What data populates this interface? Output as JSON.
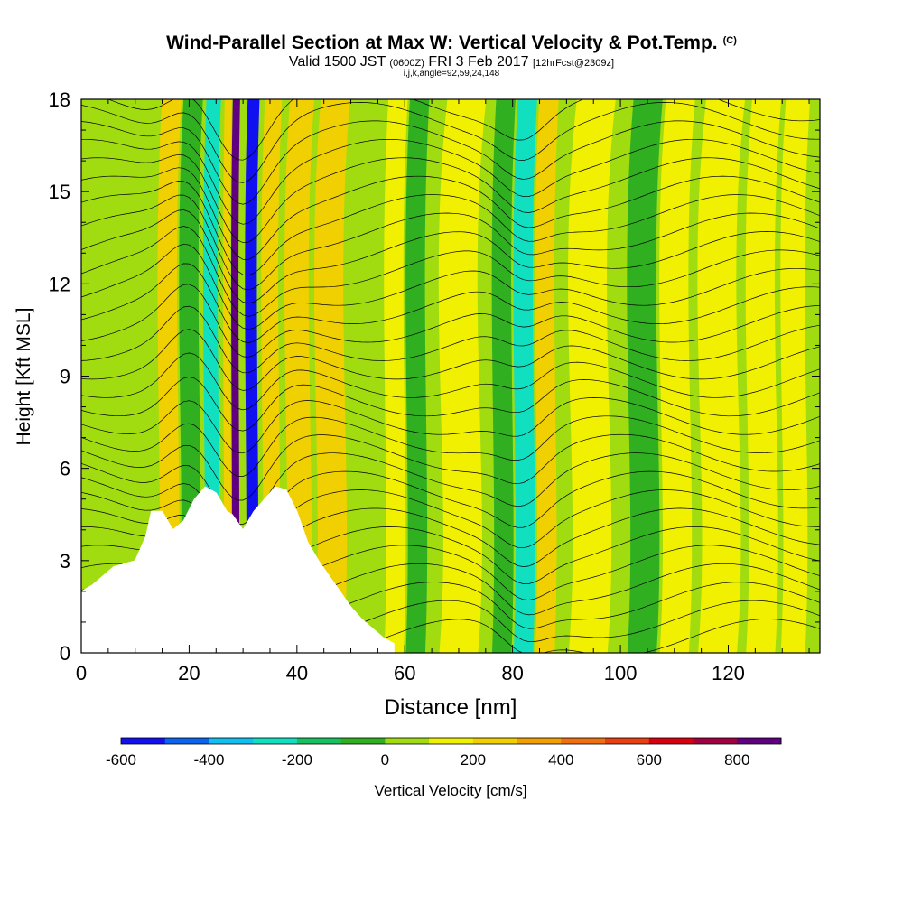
{
  "title": {
    "main": "Wind-Parallel Section at Max W: Vertical Velocity & Pot.Temp.",
    "copyright": "(C)",
    "valid_prefix": "Valid 1500 JST",
    "valid_utc": "(0600Z)",
    "valid_date": "FRI 3 Feb 2017",
    "forecast": "[12hrFcst@2309z]",
    "indices": "i,j,k,angle=92,59,24,148"
  },
  "chart_data": {
    "type": "contour",
    "xlabel": "Distance [nm]",
    "ylabel": "Height [Kft MSL]",
    "xlim": [
      0,
      137
    ],
    "ylim": [
      0,
      18
    ],
    "x_ticks": [
      0,
      20,
      40,
      60,
      80,
      100,
      120
    ],
    "y_ticks": [
      0,
      3,
      6,
      9,
      12,
      15,
      18
    ],
    "grid": false,
    "colorbar": {
      "label": "Vertical Velocity [cm/s]",
      "range": [
        -600,
        900
      ],
      "step": 100,
      "tick_values": [
        -600,
        -400,
        -200,
        0,
        200,
        400,
        600,
        800
      ],
      "tick_labels": [
        "-600",
        "-400",
        "-200",
        "0",
        "200",
        "400",
        "600",
        "800"
      ],
      "colors": [
        "#1010f0",
        "#0a64f0",
        "#10c0f0",
        "#10e0c0",
        "#18c060",
        "#30b020",
        "#a0dc10",
        "#f0f000",
        "#f0d000",
        "#f0a000",
        "#f07010",
        "#e84010",
        "#d80010",
        "#a00040",
        "#600080"
      ]
    },
    "terrain_profile": {
      "x": [
        0,
        2,
        4,
        6,
        8,
        10,
        12,
        13,
        15,
        17,
        19,
        21,
        23,
        25,
        27,
        28,
        30,
        32,
        34,
        36,
        38,
        40,
        42,
        44,
        46,
        48,
        50,
        52,
        54,
        56,
        58
      ],
      "height": [
        2.0,
        2.2,
        2.5,
        2.8,
        2.9,
        3.0,
        3.8,
        4.6,
        4.6,
        4.0,
        4.3,
        5.0,
        5.4,
        5.2,
        4.6,
        4.5,
        4.0,
        4.6,
        5.0,
        5.4,
        5.3,
        4.6,
        3.6,
        3.0,
        2.5,
        2.0,
        1.5,
        1.1,
        0.8,
        0.5,
        0.3
      ]
    },
    "vertical_velocity_bands": [
      {
        "x_center": 16,
        "value": 200
      },
      {
        "x_center": 20,
        "value": -100
      },
      {
        "x_center": 24,
        "value": -300
      },
      {
        "x_center": 27,
        "value": 200
      },
      {
        "x_center": 28.5,
        "value": 900
      },
      {
        "x_center": 31.5,
        "value": -600
      },
      {
        "x_center": 35,
        "value": 200
      },
      {
        "x_center": 40,
        "value": 200
      },
      {
        "x_center": 46,
        "value": 200
      },
      {
        "x_center": 58,
        "value": 100
      },
      {
        "x_center": 62,
        "value": -100
      },
      {
        "x_center": 70,
        "value": 100
      },
      {
        "x_center": 78,
        "value": -100
      },
      {
        "x_center": 82,
        "value": -300
      },
      {
        "x_center": 86,
        "value": 200
      },
      {
        "x_center": 94,
        "value": 100
      },
      {
        "x_center": 104,
        "value": -100
      },
      {
        "x_center": 110,
        "value": 100
      },
      {
        "x_center": 118,
        "value": 100
      },
      {
        "x_center": 126,
        "value": 100
      },
      {
        "x_center": 132,
        "value": 100
      }
    ]
  }
}
